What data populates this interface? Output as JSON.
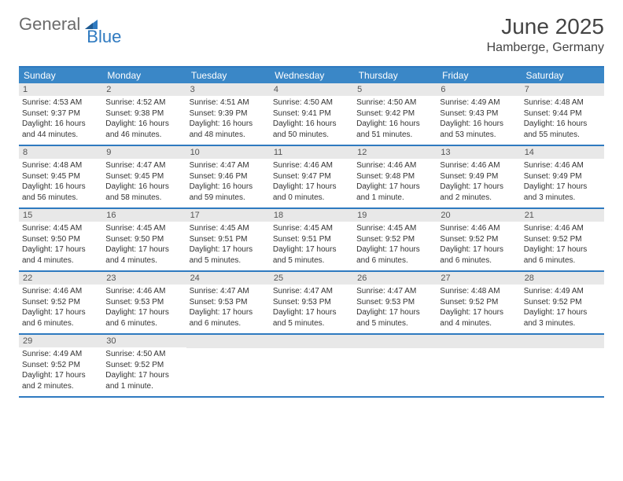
{
  "brand": {
    "general": "General",
    "blue": "Blue",
    "icon_color": "#2f7ac0"
  },
  "header": {
    "title": "June 2025",
    "location": "Hamberge, Germany"
  },
  "colors": {
    "header_bar": "#3a87c7",
    "border": "#2f7ac0",
    "day_num_bg": "#e8e8e8",
    "day_num_fg": "#555555",
    "text": "#333333",
    "logo_gray": "#6b6b6b",
    "white": "#ffffff"
  },
  "weekdays": [
    "Sunday",
    "Monday",
    "Tuesday",
    "Wednesday",
    "Thursday",
    "Friday",
    "Saturday"
  ],
  "weeks": [
    [
      {
        "n": "1",
        "sunrise": "4:53 AM",
        "sunset": "9:37 PM",
        "daylight": "16 hours and 44 minutes."
      },
      {
        "n": "2",
        "sunrise": "4:52 AM",
        "sunset": "9:38 PM",
        "daylight": "16 hours and 46 minutes."
      },
      {
        "n": "3",
        "sunrise": "4:51 AM",
        "sunset": "9:39 PM",
        "daylight": "16 hours and 48 minutes."
      },
      {
        "n": "4",
        "sunrise": "4:50 AM",
        "sunset": "9:41 PM",
        "daylight": "16 hours and 50 minutes."
      },
      {
        "n": "5",
        "sunrise": "4:50 AM",
        "sunset": "9:42 PM",
        "daylight": "16 hours and 51 minutes."
      },
      {
        "n": "6",
        "sunrise": "4:49 AM",
        "sunset": "9:43 PM",
        "daylight": "16 hours and 53 minutes."
      },
      {
        "n": "7",
        "sunrise": "4:48 AM",
        "sunset": "9:44 PM",
        "daylight": "16 hours and 55 minutes."
      }
    ],
    [
      {
        "n": "8",
        "sunrise": "4:48 AM",
        "sunset": "9:45 PM",
        "daylight": "16 hours and 56 minutes."
      },
      {
        "n": "9",
        "sunrise": "4:47 AM",
        "sunset": "9:45 PM",
        "daylight": "16 hours and 58 minutes."
      },
      {
        "n": "10",
        "sunrise": "4:47 AM",
        "sunset": "9:46 PM",
        "daylight": "16 hours and 59 minutes."
      },
      {
        "n": "11",
        "sunrise": "4:46 AM",
        "sunset": "9:47 PM",
        "daylight": "17 hours and 0 minutes."
      },
      {
        "n": "12",
        "sunrise": "4:46 AM",
        "sunset": "9:48 PM",
        "daylight": "17 hours and 1 minute."
      },
      {
        "n": "13",
        "sunrise": "4:46 AM",
        "sunset": "9:49 PM",
        "daylight": "17 hours and 2 minutes."
      },
      {
        "n": "14",
        "sunrise": "4:46 AM",
        "sunset": "9:49 PM",
        "daylight": "17 hours and 3 minutes."
      }
    ],
    [
      {
        "n": "15",
        "sunrise": "4:45 AM",
        "sunset": "9:50 PM",
        "daylight": "17 hours and 4 minutes."
      },
      {
        "n": "16",
        "sunrise": "4:45 AM",
        "sunset": "9:50 PM",
        "daylight": "17 hours and 4 minutes."
      },
      {
        "n": "17",
        "sunrise": "4:45 AM",
        "sunset": "9:51 PM",
        "daylight": "17 hours and 5 minutes."
      },
      {
        "n": "18",
        "sunrise": "4:45 AM",
        "sunset": "9:51 PM",
        "daylight": "17 hours and 5 minutes."
      },
      {
        "n": "19",
        "sunrise": "4:45 AM",
        "sunset": "9:52 PM",
        "daylight": "17 hours and 6 minutes."
      },
      {
        "n": "20",
        "sunrise": "4:46 AM",
        "sunset": "9:52 PM",
        "daylight": "17 hours and 6 minutes."
      },
      {
        "n": "21",
        "sunrise": "4:46 AM",
        "sunset": "9:52 PM",
        "daylight": "17 hours and 6 minutes."
      }
    ],
    [
      {
        "n": "22",
        "sunrise": "4:46 AM",
        "sunset": "9:52 PM",
        "daylight": "17 hours and 6 minutes."
      },
      {
        "n": "23",
        "sunrise": "4:46 AM",
        "sunset": "9:53 PM",
        "daylight": "17 hours and 6 minutes."
      },
      {
        "n": "24",
        "sunrise": "4:47 AM",
        "sunset": "9:53 PM",
        "daylight": "17 hours and 6 minutes."
      },
      {
        "n": "25",
        "sunrise": "4:47 AM",
        "sunset": "9:53 PM",
        "daylight": "17 hours and 5 minutes."
      },
      {
        "n": "26",
        "sunrise": "4:47 AM",
        "sunset": "9:53 PM",
        "daylight": "17 hours and 5 minutes."
      },
      {
        "n": "27",
        "sunrise": "4:48 AM",
        "sunset": "9:52 PM",
        "daylight": "17 hours and 4 minutes."
      },
      {
        "n": "28",
        "sunrise": "4:49 AM",
        "sunset": "9:52 PM",
        "daylight": "17 hours and 3 minutes."
      }
    ],
    [
      {
        "n": "29",
        "sunrise": "4:49 AM",
        "sunset": "9:52 PM",
        "daylight": "17 hours and 2 minutes."
      },
      {
        "n": "30",
        "sunrise": "4:50 AM",
        "sunset": "9:52 PM",
        "daylight": "17 hours and 1 minute."
      },
      null,
      null,
      null,
      null,
      null
    ]
  ],
  "labels": {
    "sunrise": "Sunrise: ",
    "sunset": "Sunset: ",
    "daylight": "Daylight: "
  }
}
